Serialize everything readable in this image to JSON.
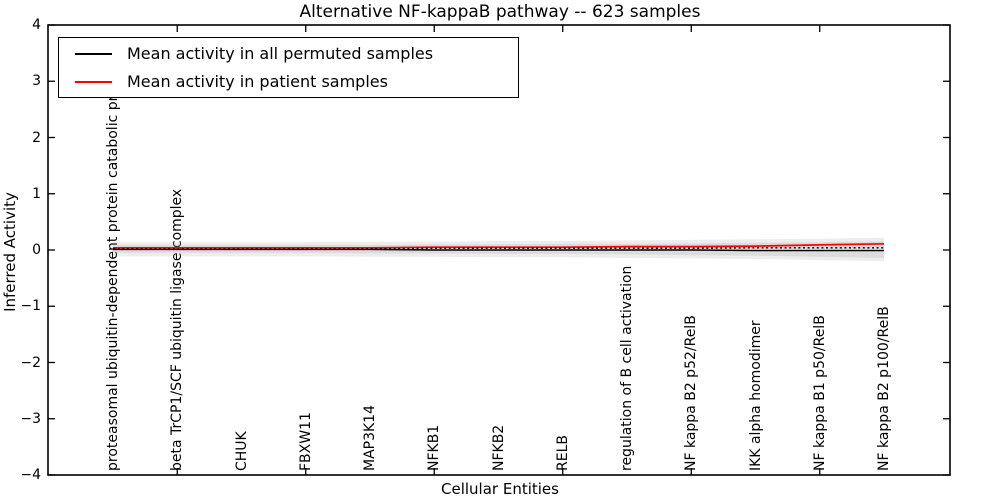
{
  "title": "Alternative NF-kappaB pathway -- 623 samples",
  "axes": {
    "x_label": "Cellular Entities",
    "y_label": "Inferred Activity",
    "y_tick_labels": [
      "4",
      "3",
      "2",
      "1",
      "0",
      "−1",
      "−2",
      "−3",
      "−4"
    ]
  },
  "legend": {
    "items": [
      {
        "label": "Mean activity in all permuted samples",
        "color": "#000000"
      },
      {
        "label": "Mean activity in patient samples",
        "color": "#ff0000"
      }
    ]
  },
  "chart_data": {
    "type": "line",
    "title": "Alternative NF-kappaB pathway -- 623 samples",
    "xlabel": "Cellular Entities",
    "ylabel": "Inferred Activity",
    "ylim": [
      -4,
      4
    ],
    "y_ticks": [
      4,
      3,
      2,
      1,
      0,
      -1,
      -2,
      -3,
      -4
    ],
    "grid": false,
    "legend_position": "upper left",
    "background": "#ffffff",
    "categories": [
      "proteasomal ubiquitin-dependent protein catabolic pr",
      "beta TrCP1/SCF ubiquitin ligase complex",
      "CHUK",
      "FBXW11",
      "MAP3K14",
      "NFKB1",
      "NFKB2",
      "RELB",
      "regulation of B cell activation",
      "NF kappa B2 p52/RelB",
      "IKK alpha homodimer",
      "NF kappa B1 p50/RelB",
      "NF kappa B2 p100/RelB"
    ],
    "series": [
      {
        "name": "Mean activity in all permuted samples",
        "color": "#000000",
        "line_style": "solid",
        "width": 1.4,
        "values": [
          0.01,
          0.01,
          0.01,
          0.01,
          0.01,
          0.0,
          0.0,
          0.0,
          0.0,
          0.0,
          -0.01,
          -0.01,
          -0.01
        ]
      },
      {
        "name": "Mean activity in patient samples",
        "color": "#ff0000",
        "line_style": "solid",
        "width": 1.7,
        "values": [
          0.04,
          0.04,
          0.04,
          0.04,
          0.04,
          0.05,
          0.05,
          0.05,
          0.06,
          0.06,
          0.07,
          0.09,
          0.11
        ]
      },
      {
        "name": "permuted-samples-dotted-bound",
        "color": "#000000",
        "line_style": "dotted",
        "width": 1.4,
        "values": [
          0.02,
          0.02,
          0.02,
          0.02,
          0.02,
          0.03,
          0.03,
          0.03,
          0.03,
          0.03,
          0.04,
          0.04,
          0.04
        ]
      }
    ],
    "bands": [
      {
        "name": "permuted-outer-band",
        "color": "#999999",
        "opacity": 0.18,
        "upper": [
          0.14,
          0.14,
          0.14,
          0.14,
          0.15,
          0.15,
          0.16,
          0.16,
          0.17,
          0.18,
          0.19,
          0.2,
          0.22
        ],
        "lower": [
          -0.11,
          -0.11,
          -0.11,
          -0.11,
          -0.12,
          -0.12,
          -0.13,
          -0.13,
          -0.14,
          -0.15,
          -0.16,
          -0.18,
          -0.2
        ]
      },
      {
        "name": "permuted-inner-band",
        "color": "#999999",
        "opacity": 0.2,
        "upper": [
          0.09,
          0.09,
          0.09,
          0.09,
          0.09,
          0.1,
          0.1,
          0.11,
          0.11,
          0.12,
          0.13,
          0.14,
          0.16
        ],
        "lower": [
          -0.05,
          -0.05,
          -0.05,
          -0.05,
          -0.06,
          -0.06,
          -0.07,
          -0.07,
          -0.08,
          -0.09,
          -0.1,
          -0.12,
          -0.14
        ]
      }
    ]
  }
}
